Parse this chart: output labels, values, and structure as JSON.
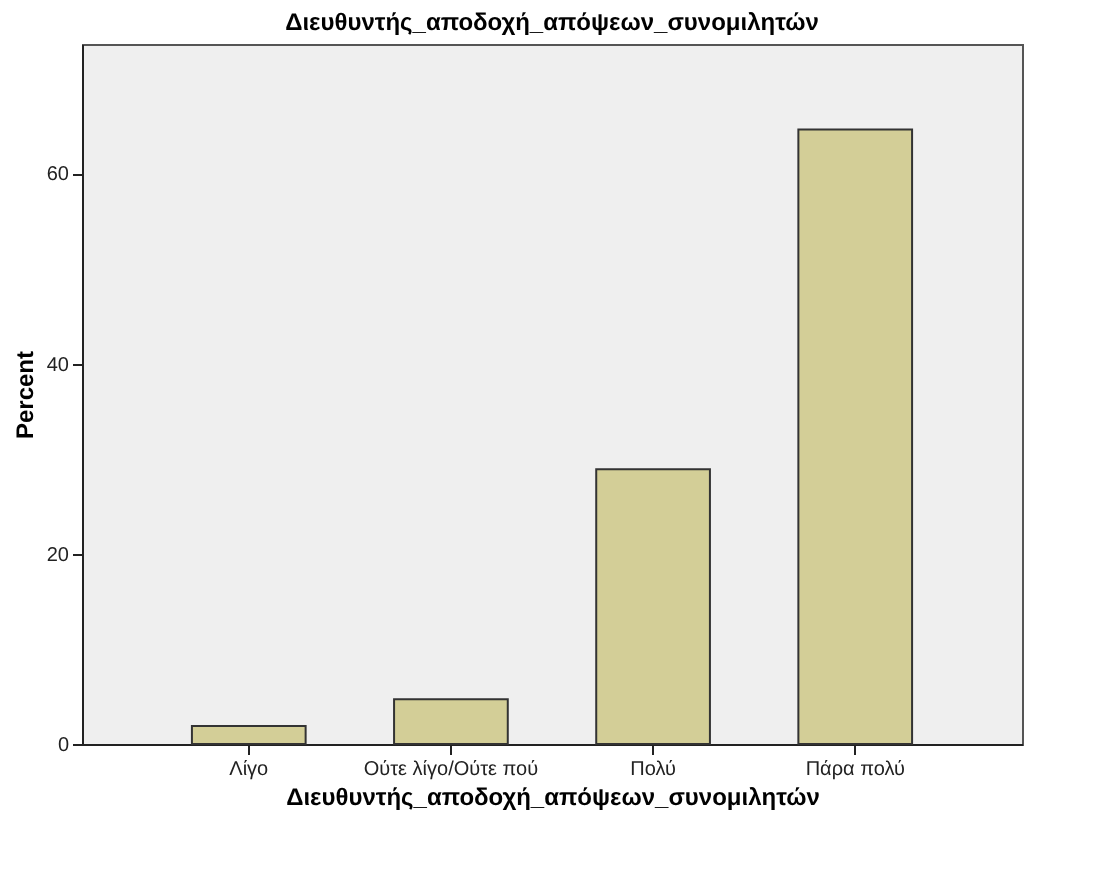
{
  "chart_data": {
    "type": "bar",
    "title": "Διευθυντής_αποδοχή_απόψεων_συνομιλητών",
    "xlabel": "Διευθυντής_αποδοχή_απόψεων_συνομιλητών",
    "ylabel": "Percent",
    "categories": [
      "Λίγο",
      "Ούτε λίγο/Ούτε πού",
      "Πολύ",
      "Πάρα πολύ"
    ],
    "values": [
      1.9,
      4.7,
      28.9,
      64.6
    ],
    "color": "#d3ce97",
    "ylim": [
      0,
      73.6
    ],
    "yticks": [
      0,
      20,
      40,
      60
    ],
    "grid": false
  }
}
